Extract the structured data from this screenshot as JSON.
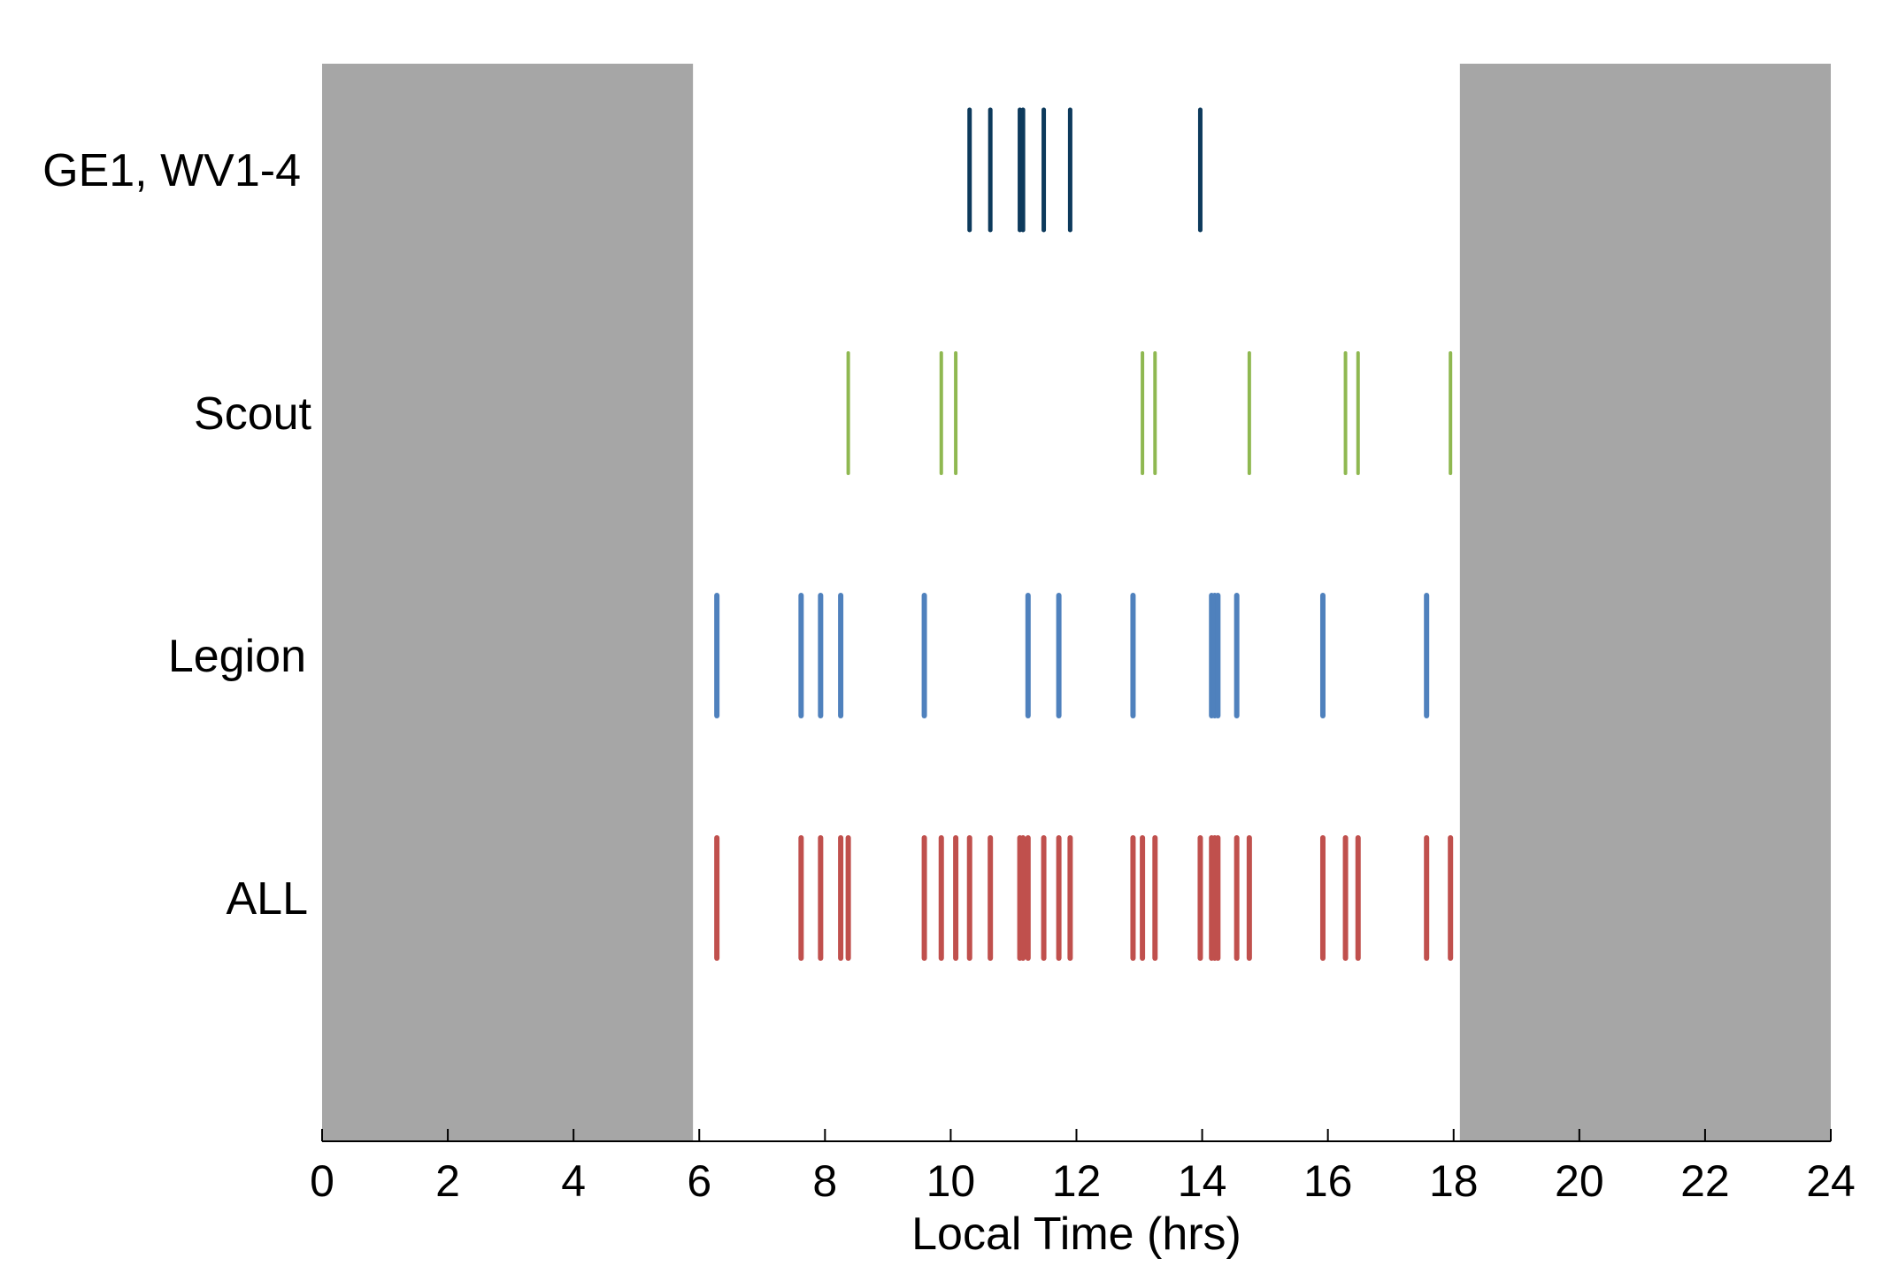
{
  "chart_data": {
    "type": "event-raster",
    "xlabel": "Local Time (hrs)",
    "xlim": [
      0,
      24
    ],
    "xticks": [
      0,
      2,
      4,
      6,
      8,
      10,
      12,
      14,
      16,
      18,
      20,
      22,
      24
    ],
    "shaded_intervals": [
      {
        "start": 0,
        "end": 5.9,
        "color": "#a6a6a6"
      },
      {
        "start": 18.1,
        "end": 24,
        "color": "#a6a6a6"
      }
    ],
    "grid": false,
    "series": [
      {
        "name": "GE1, WV1-4",
        "color": "#0d3a5c",
        "width": 5,
        "x": [
          10.3,
          10.63,
          11.1,
          11.15,
          11.48,
          11.9,
          13.97
        ]
      },
      {
        "name": "Scout",
        "color": "#8fb851",
        "width": 4,
        "x": [
          8.37,
          9.85,
          10.08,
          13.05,
          13.25,
          14.75,
          16.28,
          16.48,
          17.95
        ]
      },
      {
        "name": "Legion",
        "color": "#4f81bd",
        "width": 6,
        "x": [
          6.28,
          7.62,
          7.93,
          8.25,
          9.58,
          11.23,
          11.72,
          12.9,
          14.15,
          14.2,
          14.25,
          14.55,
          15.92,
          17.57
        ]
      },
      {
        "name": "ALL",
        "color": "#c0504d",
        "width": 6,
        "x": [
          6.28,
          7.62,
          7.93,
          8.25,
          8.37,
          9.58,
          9.85,
          10.08,
          10.3,
          10.63,
          11.1,
          11.15,
          11.23,
          11.48,
          11.72,
          11.9,
          12.9,
          13.05,
          13.25,
          13.97,
          14.15,
          14.2,
          14.25,
          14.55,
          14.75,
          15.92,
          16.28,
          16.48,
          17.57,
          17.95
        ]
      }
    ]
  }
}
